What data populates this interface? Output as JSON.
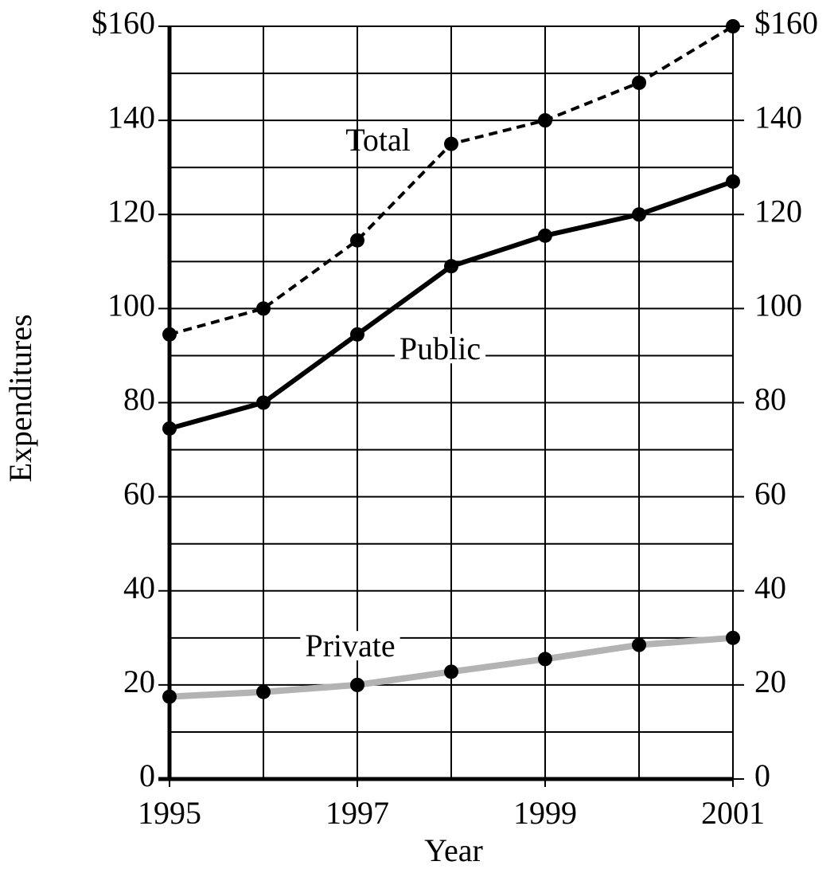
{
  "chart_data": {
    "type": "line",
    "x_label": "Year",
    "y_label": "Expenditures",
    "x": [
      1995,
      1996,
      1997,
      1998,
      1999,
      2000,
      2001
    ],
    "series": [
      {
        "name": "Total",
        "color": "#000000",
        "style": "dashed",
        "values": [
          94.5,
          100,
          114.5,
          135,
          140,
          148,
          160
        ]
      },
      {
        "name": "Public",
        "color": "#000000",
        "style": "solid",
        "values": [
          74.5,
          80,
          94.5,
          109,
          115.5,
          120,
          127
        ]
      },
      {
        "name": "Private",
        "color": "#b3b3b3",
        "style": "solid",
        "values": [
          17.5,
          18.5,
          20,
          22.8,
          25.5,
          28.5,
          30
        ]
      }
    ],
    "xlim": [
      1995,
      2001
    ],
    "xticks": [
      1995,
      1997,
      1999,
      2001
    ],
    "x_minor_ticks": [
      1996,
      1998,
      2000
    ],
    "ylim": [
      0,
      160
    ],
    "yticks": [
      0,
      20,
      40,
      60,
      80,
      100,
      120,
      140,
      {
        "value": 160,
        "label": "$160"
      }
    ],
    "y_minor_ticks": [
      10,
      30,
      50,
      70,
      90,
      110,
      130,
      150
    ],
    "y2lim": [
      0,
      160
    ],
    "y2ticks": [
      0,
      20,
      40,
      60,
      80,
      100,
      120,
      140,
      {
        "value": 160,
        "label": "$160"
      }
    ],
    "grid": true,
    "marker_color": "#000000"
  }
}
